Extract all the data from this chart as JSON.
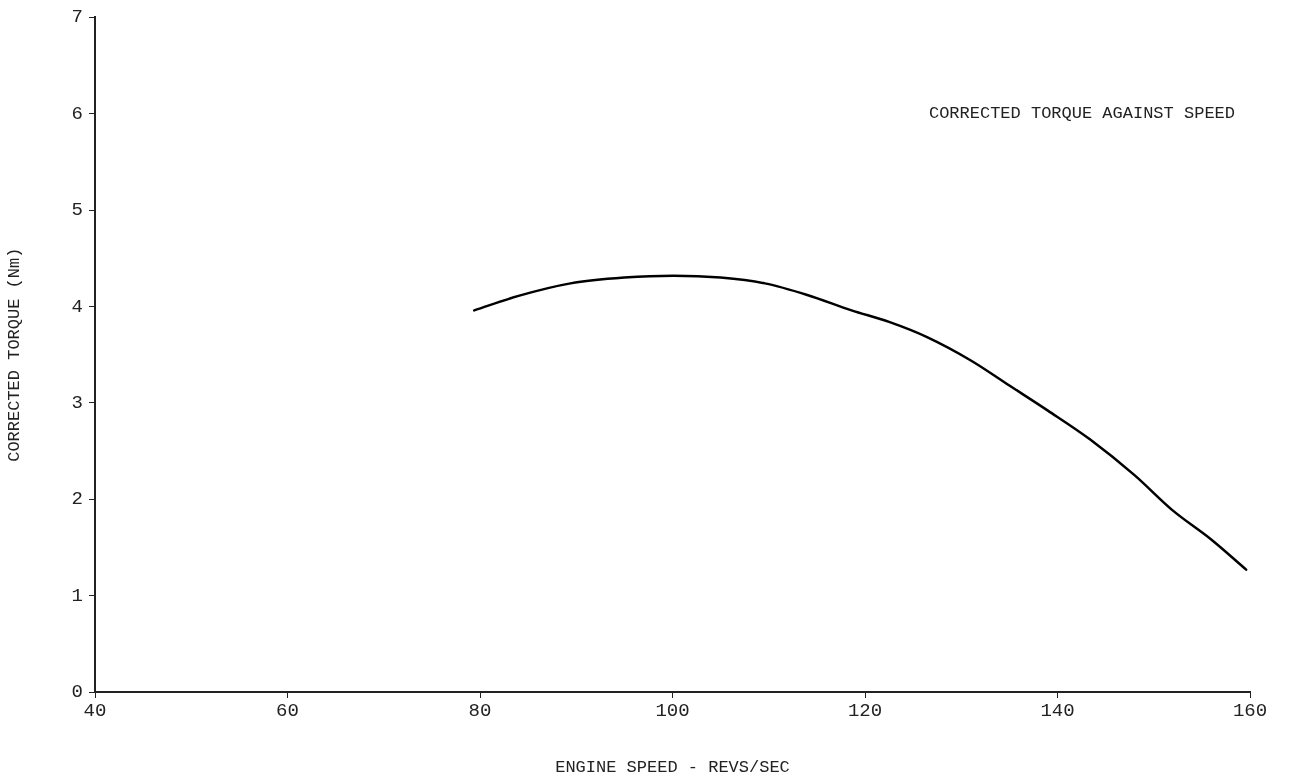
{
  "chart_data": {
    "type": "line",
    "title": "CORRECTED TORQUE AGAINST SPEED",
    "xlabel": "ENGINE SPEED - REVS/SEC",
    "ylabel": "CORRECTED TORQUE (Nm)",
    "x": [
      79.4,
      84,
      89.4,
      95,
      100.1,
      105,
      109.6,
      114,
      118.6,
      122.5,
      126.5,
      131,
      135,
      139,
      143.4,
      148,
      151.9,
      156,
      159.6
    ],
    "series": [
      {
        "color": "#000000",
        "values": [
          3.96,
          4.11,
          4.24,
          4.3,
          4.32,
          4.3,
          4.24,
          4.12,
          3.96,
          3.84,
          3.68,
          3.44,
          3.18,
          2.92,
          2.62,
          2.25,
          1.89,
          1.58,
          1.27
        ]
      }
    ],
    "xlim": [
      40,
      160
    ],
    "xticks": [
      40,
      60,
      80,
      100,
      120,
      140,
      160
    ],
    "ylim": [
      0,
      7
    ],
    "yticks": [
      0,
      1,
      2,
      3,
      4,
      5,
      6,
      7
    ],
    "grid": false,
    "legend": false,
    "marker": "none",
    "line_style": "solid"
  }
}
